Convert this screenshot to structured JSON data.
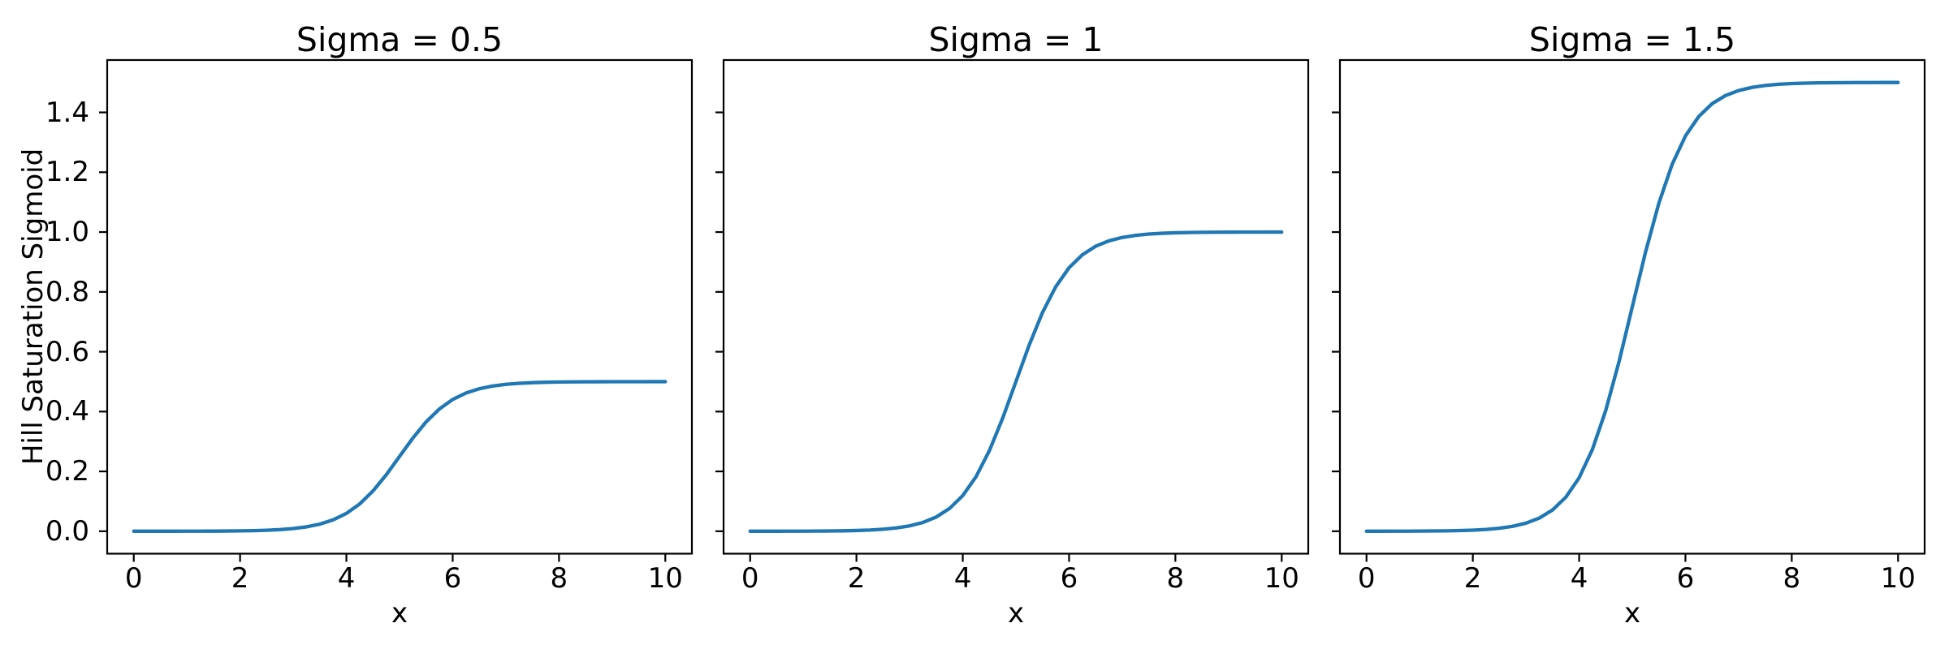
{
  "chart_data": {
    "type": "line",
    "layout": "1x3 subplots, shared y-axis style, no grid, no legend",
    "xlabel": "x",
    "ylabel": "Hill Saturation Sigmoid",
    "xlim": [
      -0.5,
      10.5
    ],
    "ylim": [
      -0.075,
      1.575
    ],
    "xticks": [
      "0",
      "2",
      "4",
      "6",
      "8",
      "10"
    ],
    "yticks": [
      "0.0",
      "0.2",
      "0.4",
      "0.6",
      "0.8",
      "1.0",
      "1.2",
      "1.4"
    ],
    "line_color": "#1f77b4",
    "axis_color": "#000000",
    "background_color": "#ffffff",
    "x": [
      0,
      0.25,
      0.5,
      0.75,
      1,
      1.25,
      1.5,
      1.75,
      2,
      2.25,
      2.5,
      2.75,
      3,
      3.25,
      3.5,
      3.75,
      4,
      4.25,
      4.5,
      4.75,
      5,
      5.25,
      5.5,
      5.75,
      6,
      6.25,
      6.5,
      6.75,
      7,
      7.25,
      7.5,
      7.75,
      8,
      8.25,
      8.5,
      8.75,
      9,
      9.25,
      9.5,
      9.75,
      10
    ],
    "panels": [
      {
        "title": "Sigma = 0.5",
        "sigma": 0.5,
        "saturation_value": 0.5,
        "midpoint_x": 5,
        "y": [
          2e-05,
          4e-05,
          6e-05,
          0.0001,
          0.00017,
          0.00028,
          0.00046,
          0.00075,
          0.00124,
          0.00203,
          0.00335,
          0.00549,
          0.00899,
          0.01466,
          0.02371,
          0.03793,
          0.0596,
          0.09121,
          0.13447,
          0.18877,
          0.25,
          0.31123,
          0.36553,
          0.40879,
          0.4404,
          0.46207,
          0.47629,
          0.48534,
          0.49101,
          0.49451,
          0.49665,
          0.49797,
          0.49876,
          0.49925,
          0.49954,
          0.49972,
          0.49983,
          0.4999,
          0.49994,
          0.49996,
          0.49998
        ]
      },
      {
        "title": "Sigma = 1",
        "sigma": 1.0,
        "saturation_value": 1.0,
        "midpoint_x": 5,
        "y": [
          5e-05,
          7e-05,
          0.00012,
          0.0002,
          0.00034,
          0.00055,
          0.00091,
          0.0015,
          0.00247,
          0.00407,
          0.00669,
          0.01099,
          0.01799,
          0.02931,
          0.04743,
          0.07586,
          0.1192,
          0.18243,
          0.26894,
          0.37754,
          0.5,
          0.62246,
          0.73106,
          0.81757,
          0.8808,
          0.92414,
          0.95257,
          0.97069,
          0.98201,
          0.98901,
          0.99331,
          0.99593,
          0.99753,
          0.9985,
          0.99909,
          0.99945,
          0.99966,
          0.9998,
          0.99988,
          0.99993,
          0.99995
        ]
      },
      {
        "title": "Sigma = 1.5",
        "sigma": 1.5,
        "saturation_value": 1.5,
        "midpoint_x": 5,
        "y": [
          7e-05,
          0.00011,
          0.00018,
          0.0003,
          0.0005,
          0.00083,
          0.00137,
          0.00225,
          0.00371,
          0.0061,
          0.01004,
          0.01648,
          0.02698,
          0.04397,
          0.07114,
          0.11379,
          0.1788,
          0.27364,
          0.40341,
          0.56631,
          0.75,
          0.93369,
          1.09659,
          1.22636,
          1.3212,
          1.38621,
          1.42886,
          1.45603,
          1.47302,
          1.48352,
          1.48996,
          1.4939,
          1.49629,
          1.49775,
          1.49863,
          1.49917,
          1.4995,
          1.4997,
          1.49982,
          1.49989,
          1.49993
        ]
      }
    ]
  }
}
